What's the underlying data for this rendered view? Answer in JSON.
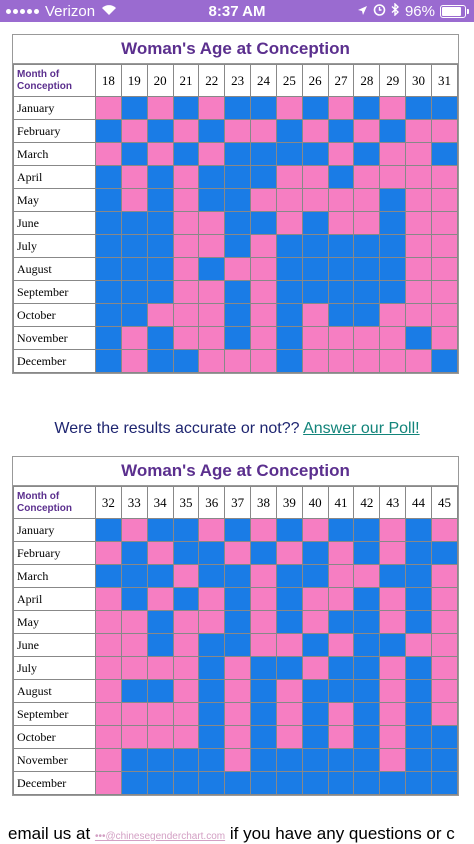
{
  "status_bar": {
    "carrier": "Verizon",
    "time": "8:37 AM",
    "battery": "96%"
  },
  "poll": {
    "question": "Were the results accurate or not??",
    "link": "Answer our Poll!"
  },
  "footer": {
    "prefix": "email us at",
    "email": "•••@chinesegenderchart.com",
    "suffix": "if you have any questions or c"
  },
  "colors": {
    "boy": "#1a7ce6",
    "girl": "#f67ec2",
    "title": "#5b2f8e",
    "statusbar": "#9a6bd0"
  },
  "charts": [
    {
      "title": "Woman's Age at Conception",
      "month_header": "Month of Conception",
      "ages": [
        "18",
        "19",
        "20",
        "21",
        "22",
        "23",
        "24",
        "25",
        "26",
        "27",
        "28",
        "29",
        "30",
        "31"
      ],
      "rows": [
        {
          "month": "January",
          "cells": [
            "p",
            "b",
            "p",
            "b",
            "p",
            "b",
            "b",
            "p",
            "b",
            "p",
            "b",
            "p",
            "b",
            "b"
          ]
        },
        {
          "month": "February",
          "cells": [
            "b",
            "p",
            "b",
            "p",
            "b",
            "p",
            "p",
            "b",
            "p",
            "b",
            "p",
            "b",
            "p",
            "p"
          ]
        },
        {
          "month": "March",
          "cells": [
            "p",
            "b",
            "p",
            "b",
            "p",
            "b",
            "b",
            "b",
            "b",
            "p",
            "b",
            "p",
            "p",
            "b"
          ]
        },
        {
          "month": "April",
          "cells": [
            "b",
            "p",
            "b",
            "p",
            "b",
            "b",
            "b",
            "p",
            "p",
            "b",
            "p",
            "p",
            "p",
            "p"
          ]
        },
        {
          "month": "May",
          "cells": [
            "b",
            "p",
            "b",
            "p",
            "b",
            "b",
            "p",
            "p",
            "p",
            "p",
            "p",
            "b",
            "p",
            "p"
          ]
        },
        {
          "month": "June",
          "cells": [
            "b",
            "b",
            "b",
            "p",
            "p",
            "b",
            "b",
            "p",
            "b",
            "p",
            "p",
            "b",
            "p",
            "p"
          ]
        },
        {
          "month": "July",
          "cells": [
            "b",
            "b",
            "b",
            "p",
            "p",
            "b",
            "p",
            "b",
            "b",
            "b",
            "b",
            "b",
            "p",
            "p"
          ]
        },
        {
          "month": "August",
          "cells": [
            "b",
            "b",
            "b",
            "p",
            "b",
            "p",
            "p",
            "b",
            "b",
            "b",
            "b",
            "b",
            "p",
            "p"
          ]
        },
        {
          "month": "September",
          "cells": [
            "b",
            "b",
            "b",
            "p",
            "p",
            "b",
            "p",
            "b",
            "b",
            "b",
            "b",
            "b",
            "p",
            "p"
          ]
        },
        {
          "month": "October",
          "cells": [
            "b",
            "b",
            "p",
            "p",
            "p",
            "b",
            "p",
            "b",
            "p",
            "b",
            "b",
            "p",
            "p",
            "p"
          ]
        },
        {
          "month": "November",
          "cells": [
            "b",
            "p",
            "b",
            "p",
            "p",
            "b",
            "p",
            "b",
            "p",
            "p",
            "p",
            "p",
            "b",
            "p"
          ]
        },
        {
          "month": "December",
          "cells": [
            "b",
            "p",
            "b",
            "b",
            "p",
            "p",
            "p",
            "b",
            "p",
            "p",
            "p",
            "p",
            "p",
            "b"
          ]
        }
      ]
    },
    {
      "title": "Woman's Age at Conception",
      "month_header": "Month of Conception",
      "ages": [
        "32",
        "33",
        "34",
        "35",
        "36",
        "37",
        "38",
        "39",
        "40",
        "41",
        "42",
        "43",
        "44",
        "45"
      ],
      "rows": [
        {
          "month": "January",
          "cells": [
            "b",
            "p",
            "b",
            "b",
            "p",
            "b",
            "p",
            "b",
            "p",
            "b",
            "b",
            "p",
            "b",
            "p"
          ]
        },
        {
          "month": "February",
          "cells": [
            "p",
            "b",
            "p",
            "b",
            "b",
            "p",
            "b",
            "p",
            "b",
            "p",
            "b",
            "p",
            "b",
            "b"
          ]
        },
        {
          "month": "March",
          "cells": [
            "b",
            "b",
            "b",
            "p",
            "b",
            "b",
            "p",
            "b",
            "b",
            "p",
            "p",
            "b",
            "b",
            "p"
          ]
        },
        {
          "month": "April",
          "cells": [
            "p",
            "b",
            "p",
            "b",
            "p",
            "b",
            "p",
            "b",
            "p",
            "p",
            "b",
            "p",
            "b",
            "p"
          ]
        },
        {
          "month": "May",
          "cells": [
            "p",
            "p",
            "b",
            "p",
            "p",
            "b",
            "p",
            "b",
            "p",
            "b",
            "b",
            "p",
            "b",
            "p"
          ]
        },
        {
          "month": "June",
          "cells": [
            "p",
            "p",
            "b",
            "p",
            "b",
            "b",
            "p",
            "p",
            "b",
            "p",
            "b",
            "b",
            "p",
            "p"
          ]
        },
        {
          "month": "July",
          "cells": [
            "p",
            "p",
            "p",
            "p",
            "b",
            "p",
            "b",
            "b",
            "p",
            "b",
            "b",
            "p",
            "b",
            "p"
          ]
        },
        {
          "month": "August",
          "cells": [
            "p",
            "b",
            "b",
            "p",
            "b",
            "p",
            "b",
            "p",
            "b",
            "b",
            "b",
            "p",
            "b",
            "p"
          ]
        },
        {
          "month": "September",
          "cells": [
            "p",
            "p",
            "p",
            "p",
            "b",
            "p",
            "b",
            "p",
            "b",
            "p",
            "b",
            "p",
            "b",
            "p"
          ]
        },
        {
          "month": "October",
          "cells": [
            "p",
            "p",
            "p",
            "p",
            "b",
            "p",
            "b",
            "p",
            "b",
            "p",
            "b",
            "p",
            "b",
            "b"
          ]
        },
        {
          "month": "November",
          "cells": [
            "p",
            "b",
            "b",
            "b",
            "b",
            "p",
            "b",
            "b",
            "b",
            "b",
            "b",
            "p",
            "b",
            "b"
          ]
        },
        {
          "month": "December",
          "cells": [
            "p",
            "b",
            "b",
            "b",
            "b",
            "b",
            "b",
            "b",
            "b",
            "b",
            "b",
            "b",
            "b",
            "b"
          ]
        }
      ]
    }
  ]
}
